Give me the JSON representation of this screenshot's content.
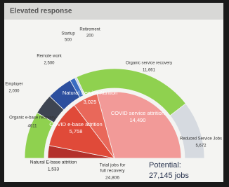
{
  "chart_data": {
    "type": "pie",
    "title": "Elevated response",
    "rings": [
      {
        "categories": [
          "Organic e-base recovery",
          "Employer",
          "Remote work",
          "Startup",
          "Retirement",
          "Organic service recovery",
          "Reduced Service Jobs"
        ],
        "values": [
          4611,
          2000,
          2500,
          500,
          200,
          11661,
          5672
        ],
        "value_labels": [
          "4611",
          "2,000",
          "2,500",
          "500",
          "200",
          "11,661",
          "5,672"
        ],
        "colors": [
          "#8fd14f",
          "#3e4552",
          "#2c4f9e",
          "#3a6cc2",
          "#c9d6ea",
          "#8fd14f",
          "#d6dae0"
        ]
      },
      {
        "categories": [
          "Natural E-base attrition",
          "COVID e-base attrition",
          "Natural Service Attrition",
          "COVID service attrition"
        ],
        "values": [
          1533,
          5758,
          3025,
          14490
        ],
        "value_labels": [
          "1,533",
          "5,758",
          "3,025",
          "14,490"
        ],
        "colors": [
          "#b3302b",
          "#e04a39",
          "#e9685a",
          "#f29a98"
        ]
      }
    ],
    "annotations": [
      "Total jobs for",
      "full recovery",
      "24,806",
      "Potential:",
      "27,145 jobs"
    ]
  }
}
